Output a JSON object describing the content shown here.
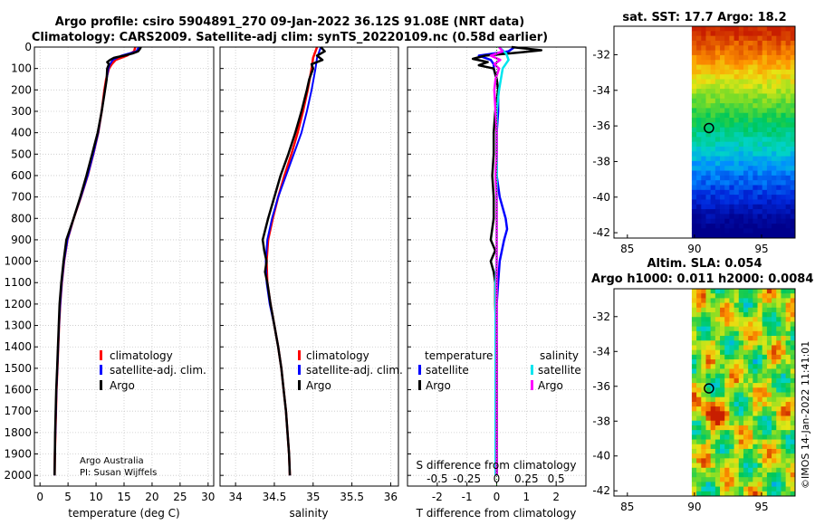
{
  "title_line1": "Argo profile: csiro 5904891_270 09-Jan-2022 36.12S 91.08E (NRT data)",
  "title_line2": "Climatology: CARS2009. Satellite-adj clim: synTS_20220109.nc (0.58d earlier)",
  "credit_line1": "Argo Australia",
  "credit_line2": "PI: Susan Wijffels",
  "imos_stamp": "©IMOS 14-Jan-2022 11:41:01",
  "legend_temp": {
    "climatology": "climatology",
    "satellite": "satellite-adj. clim.",
    "argo": "Argo"
  },
  "legend_sal": {
    "climatology": "climatology",
    "satellite": "satellite-adj. clim.",
    "argo": "Argo"
  },
  "legend_diff": {
    "temperature": "temperature",
    "salinity": "salinity",
    "satellite": "satellite",
    "argo": "Argo"
  },
  "colors": {
    "climatology": "#ff0000",
    "satellite": "#0000ff",
    "argo": "#000000",
    "sal_satellite": "#00e5ee",
    "sal_argo": "#ff00ff"
  },
  "chart_data": [
    {
      "type": "line",
      "panel": "temperature",
      "xlabel": "temperature (deg C)",
      "ylabel": "",
      "xlim": [
        -1,
        31
      ],
      "ylim": [
        2050,
        0
      ],
      "x_ticks": [
        0,
        5,
        10,
        15,
        20,
        25,
        30
      ],
      "y_ticks": [
        0,
        100,
        200,
        300,
        400,
        500,
        600,
        700,
        800,
        900,
        1000,
        1100,
        1200,
        1300,
        1400,
        1500,
        1600,
        1700,
        1800,
        1900,
        2000
      ],
      "grid": true,
      "series": [
        {
          "name": "climatology",
          "depth": [
            0,
            20,
            40,
            60,
            80,
            100,
            150,
            200,
            300,
            400,
            500,
            600,
            700,
            800,
            900,
            1000,
            1100,
            1200,
            1300,
            1400,
            1500,
            1600,
            1700,
            1800,
            1900,
            2000
          ],
          "values": [
            17.0,
            16.8,
            15.5,
            13.5,
            12.8,
            12.3,
            11.8,
            11.5,
            11.0,
            10.4,
            9.5,
            8.5,
            7.3,
            6.0,
            4.9,
            4.3,
            3.9,
            3.6,
            3.4,
            3.25,
            3.1,
            2.95,
            2.85,
            2.75,
            2.65,
            2.6
          ]
        },
        {
          "name": "satellite-adj. clim.",
          "depth": [
            0,
            20,
            40,
            60,
            80,
            100,
            150,
            200,
            300,
            400,
            500,
            600,
            700,
            800,
            900,
            1000,
            1100,
            1200,
            1300,
            1400,
            1500,
            1600,
            1700,
            1800,
            1900,
            2000
          ],
          "values": [
            17.6,
            17.2,
            14.5,
            13.0,
            12.5,
            12.2,
            11.9,
            11.6,
            11.0,
            10.4,
            9.5,
            8.5,
            7.3,
            6.0,
            4.9,
            4.3,
            3.9,
            3.6,
            3.4,
            3.25,
            3.1,
            2.95,
            2.85,
            2.75,
            2.65,
            2.6
          ]
        },
        {
          "name": "Argo",
          "depth": [
            0,
            10,
            20,
            30,
            40,
            50,
            60,
            70,
            80,
            100,
            150,
            200,
            300,
            400,
            500,
            600,
            700,
            800,
            900,
            1000,
            1100,
            1200,
            1300,
            1400,
            1500,
            1600,
            1700,
            1800,
            1900,
            2000
          ],
          "values": [
            18.0,
            17.8,
            17.5,
            16.5,
            15.0,
            13.2,
            12.5,
            12.0,
            12.3,
            12.0,
            11.9,
            11.6,
            11.0,
            10.3,
            9.3,
            8.3,
            7.2,
            6.0,
            4.7,
            4.2,
            3.8,
            3.5,
            3.35,
            3.2,
            3.05,
            2.9,
            2.8,
            2.7,
            2.65,
            2.6
          ]
        }
      ]
    },
    {
      "type": "line",
      "panel": "salinity",
      "xlabel": "salinity",
      "ylabel": "",
      "xlim": [
        33.8,
        36.1
      ],
      "ylim": [
        2050,
        0
      ],
      "x_ticks": [
        34,
        34.5,
        35,
        35.5,
        36
      ],
      "grid": true,
      "series": [
        {
          "name": "climatology",
          "depth": [
            0,
            50,
            100,
            200,
            300,
            400,
            500,
            600,
            700,
            800,
            900,
            1000,
            1100,
            1200,
            1300,
            1400,
            1500,
            1600,
            1700,
            1800,
            1900,
            2000
          ],
          "values": [
            35.05,
            35.0,
            34.98,
            34.93,
            34.87,
            34.8,
            34.72,
            34.63,
            34.55,
            34.48,
            34.42,
            34.4,
            34.41,
            34.45,
            34.5,
            34.55,
            34.59,
            34.62,
            34.65,
            34.67,
            34.69,
            34.7
          ]
        },
        {
          "name": "satellite-adj. clim.",
          "depth": [
            0,
            50,
            100,
            200,
            300,
            400,
            500,
            600,
            700,
            800,
            900,
            1000,
            1100,
            1200,
            1300,
            1400,
            1500,
            1600,
            1700,
            1800,
            1900,
            2000
          ],
          "values": [
            35.1,
            35.05,
            35.03,
            34.98,
            34.92,
            34.85,
            34.75,
            34.65,
            34.55,
            34.47,
            34.41,
            34.39,
            34.4,
            34.44,
            34.5,
            34.55,
            34.59,
            34.62,
            34.65,
            34.67,
            34.69,
            34.7
          ]
        },
        {
          "name": "Argo",
          "depth": [
            0,
            20,
            40,
            60,
            80,
            100,
            150,
            200,
            300,
            400,
            500,
            600,
            700,
            800,
            900,
            950,
            1000,
            1050,
            1100,
            1200,
            1300,
            1400,
            1500,
            1600,
            1700,
            1800,
            1900,
            2000
          ],
          "values": [
            35.1,
            35.15,
            35.05,
            35.12,
            34.98,
            35.0,
            34.95,
            34.92,
            34.85,
            34.77,
            34.68,
            34.58,
            34.5,
            34.42,
            34.35,
            34.37,
            34.4,
            34.38,
            34.41,
            34.45,
            34.5,
            34.55,
            34.59,
            34.62,
            34.65,
            34.67,
            34.69,
            34.7
          ]
        }
      ]
    },
    {
      "type": "line",
      "panel": "difference",
      "xlabel": "T difference from climatology",
      "x2label": "S difference from climatology",
      "xlim": [
        -3,
        3
      ],
      "x2lim": [
        -0.75,
        0.75
      ],
      "ylim": [
        2050,
        0
      ],
      "x_ticks": [
        -2,
        -1,
        0,
        1,
        2
      ],
      "x2_ticks": [
        -0.5,
        -0.25,
        0,
        0.25,
        0.5
      ],
      "grid": true,
      "series": [
        {
          "name": "temperature satellite",
          "axis": "T",
          "depth": [
            0,
            20,
            40,
            60,
            80,
            100,
            150,
            200,
            300,
            400,
            500,
            600,
            700,
            800,
            850,
            900,
            1000,
            1100,
            1200,
            1400,
            1600,
            1800,
            2000
          ],
          "values": [
            0.6,
            0.4,
            -0.6,
            -0.2,
            -0.1,
            -0.1,
            0.0,
            0.05,
            0.05,
            0.0,
            0.0,
            0.0,
            0.1,
            0.3,
            0.35,
            0.25,
            0.1,
            0.05,
            0.0,
            0.0,
            0.0,
            0.0,
            0.0
          ]
        },
        {
          "name": "temperature Argo",
          "axis": "T",
          "depth": [
            0,
            15,
            25,
            40,
            55,
            70,
            85,
            100,
            150,
            200,
            300,
            400,
            500,
            600,
            700,
            800,
            900,
            950,
            1000,
            1050,
            1100,
            1200,
            1400,
            1600,
            1800,
            2000
          ],
          "values": [
            0.5,
            1.5,
            0.8,
            -0.4,
            -0.8,
            -0.3,
            -0.6,
            -0.1,
            0.0,
            0.05,
            -0.05,
            -0.1,
            -0.1,
            -0.15,
            -0.1,
            -0.1,
            -0.2,
            -0.05,
            -0.2,
            -0.1,
            -0.05,
            -0.05,
            0.0,
            0.0,
            0.0,
            0.0
          ]
        },
        {
          "name": "salinity satellite",
          "axis": "S",
          "depth": [
            0,
            30,
            60,
            100,
            200,
            300,
            400,
            500,
            600,
            700,
            800,
            900,
            1000,
            1100,
            1200,
            1300,
            1400,
            1500,
            1600,
            1800,
            2000
          ],
          "values": [
            0.02,
            0.08,
            0.1,
            0.05,
            0.02,
            0.0,
            0.0,
            0.0,
            0.0,
            0.0,
            0.0,
            0.0,
            0.0,
            -0.01,
            -0.01,
            -0.01,
            -0.01,
            -0.01,
            -0.01,
            -0.01,
            -0.01
          ]
        },
        {
          "name": "salinity Argo",
          "axis": "S",
          "depth": [
            0,
            20,
            40,
            60,
            80,
            100,
            150,
            200,
            300,
            400,
            500,
            600,
            700,
            800,
            900,
            1000,
            1100,
            1200,
            1400,
            1600,
            1800,
            2000
          ],
          "values": [
            0.02,
            0.05,
            -0.05,
            0.03,
            -0.02,
            0.02,
            -0.01,
            -0.02,
            -0.01,
            0.0,
            0.0,
            -0.01,
            0.0,
            0.0,
            0.0,
            0.0,
            0.0,
            0.0,
            0.0,
            0.0,
            0.0,
            0.0
          ]
        }
      ]
    },
    {
      "type": "heatmap",
      "panel": "sat_sst",
      "title": "sat. SST: 17.7 Argo: 18.2",
      "xlim": [
        84,
        97.5
      ],
      "ylim": [
        -42.3,
        -30.4
      ],
      "x_ticks": [
        85,
        90,
        95
      ],
      "y_ticks": [
        -32,
        -34,
        -36,
        -38,
        -40,
        -42
      ],
      "argo_position": {
        "lon": 91.08,
        "lat": -36.12
      }
    },
    {
      "type": "heatmap",
      "panel": "altim_sla",
      "title": "Altim. SLA: 0.054",
      "subtitle": "Argo h1000: 0.011 h2000: 0.0084",
      "xlim": [
        84,
        97.5
      ],
      "ylim": [
        -42.3,
        -30.4
      ],
      "x_ticks": [
        85,
        90,
        95
      ],
      "y_ticks": [
        -32,
        -34,
        -36,
        -38,
        -40,
        -42
      ],
      "argo_position": {
        "lon": 91.08,
        "lat": -36.12
      }
    }
  ]
}
